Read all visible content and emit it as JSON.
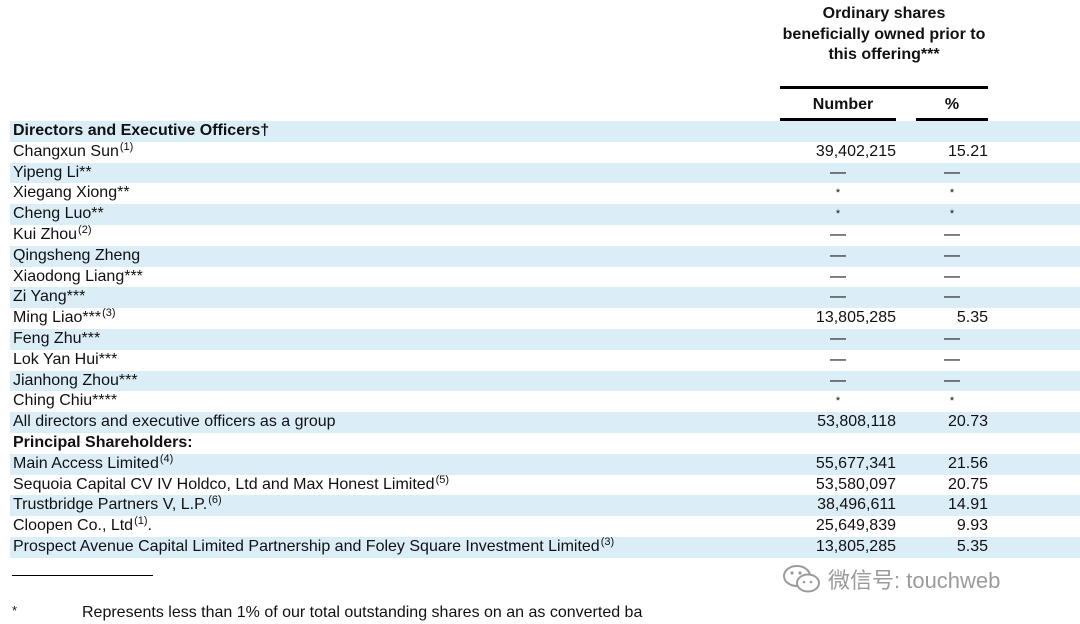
{
  "header": {
    "group_title": "Ordinary shares beneficially owned prior to this offering***",
    "number_label": "Number",
    "percent_label": "%"
  },
  "rows": [
    {
      "label": "Directors and Executive Officers†",
      "bold": true,
      "shade": true,
      "sup": "",
      "number": "",
      "percent": ""
    },
    {
      "label": "Changxun Sun",
      "sup": "(1)",
      "number": "39,402,215",
      "percent": "15.21"
    },
    {
      "label": "Yipeng Li**",
      "shade": true,
      "sup": "",
      "number": "—",
      "percent": "—"
    },
    {
      "label": "Xiegang Xiong**",
      "sup": "",
      "number": "*",
      "percent": "*"
    },
    {
      "label": "Cheng Luo**",
      "shade": true,
      "sup": "",
      "number": "*",
      "percent": "*"
    },
    {
      "label": "Kui Zhou",
      "sup": "(2)",
      "number": "—",
      "percent": "—"
    },
    {
      "label": "Qingsheng Zheng",
      "shade": true,
      "sup": "",
      "number": "—",
      "percent": "—"
    },
    {
      "label": "Xiaodong Liang***",
      "sup": "",
      "number": "—",
      "percent": "—"
    },
    {
      "label": "Zi Yang***",
      "shade": true,
      "sup": "",
      "number": "—",
      "percent": "—"
    },
    {
      "label": "Ming Liao***",
      "sup": "(3)",
      "number": "13,805,285",
      "percent": "5.35"
    },
    {
      "label": "Feng Zhu***",
      "shade": true,
      "sup": "",
      "number": "—",
      "percent": "—"
    },
    {
      "label": "Lok Yan Hui***",
      "sup": "",
      "number": "—",
      "percent": "—"
    },
    {
      "label": "Jianhong Zhou***",
      "shade": true,
      "sup": "",
      "number": "—",
      "percent": "—"
    },
    {
      "label": "Ching Chiu****",
      "sup": "",
      "number": "*",
      "percent": "*"
    },
    {
      "label": "All directors and executive officers as a group",
      "shade": true,
      "sup": "",
      "number": "53,808,118",
      "percent": "20.73"
    },
    {
      "label": "Principal Shareholders:",
      "bold": true,
      "sup": "",
      "number": "",
      "percent": ""
    },
    {
      "label": "Main Access Limited",
      "shade": true,
      "sup": "(4)",
      "number": "55,677,341",
      "percent": "21.56"
    },
    {
      "label": "Sequoia Capital CV IV Holdco, Ltd and Max Honest Limited",
      "sup": "(5)",
      "number": "53,580,097",
      "percent": "20.75"
    },
    {
      "label": "Trustbridge Partners V, L.P.",
      "shade": true,
      "sup": "(6)",
      "number": "38,496,611",
      "percent": "14.91"
    },
    {
      "label": "Cloopen Co., Ltd",
      "sup": "(1)",
      "suffix": ".",
      "number": "25,649,839",
      "percent": "9.93"
    },
    {
      "label": "Prospect Avenue Capital Limited Partnership and Foley Square Investment Limited",
      "shade": true,
      "sup": "(3)",
      "number": "13,805,285",
      "percent": "5.35"
    }
  ],
  "footnote": {
    "mark": "*",
    "text": "Represents less than 1% of our total outstanding shares on an as converted ba"
  },
  "watermark": {
    "icon": "wechat-icon",
    "text": "微信号: touchweb"
  }
}
